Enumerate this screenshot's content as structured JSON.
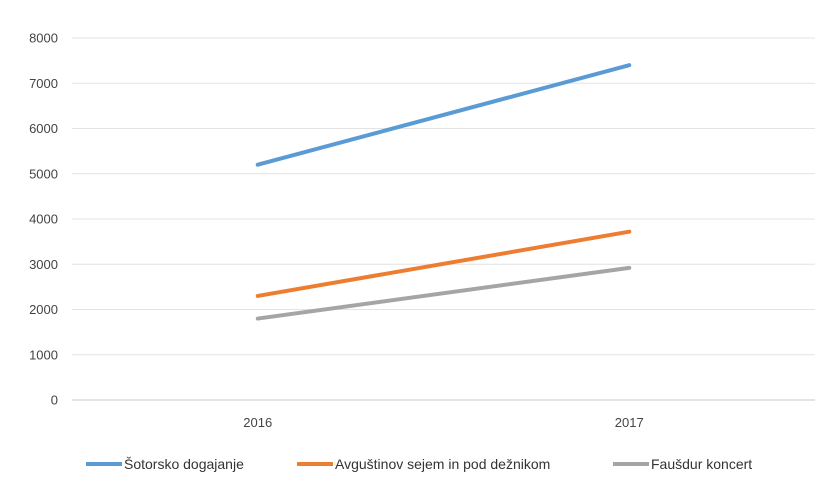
{
  "chart_data": {
    "type": "line",
    "title": "",
    "xlabel": "",
    "ylabel": "",
    "categories": [
      "2016",
      "2017"
    ],
    "ylim": [
      0,
      8000
    ],
    "yticks": [
      0,
      1000,
      2000,
      3000,
      4000,
      5000,
      6000,
      7000,
      8000
    ],
    "grid": "horizontal",
    "legend_position": "bottom",
    "series": [
      {
        "name": "Šotorsko dogajanje",
        "values": [
          5200,
          7400
        ],
        "color": "#5b9bd5"
      },
      {
        "name": "Avguštinov sejem in pod dežnikom",
        "values": [
          2300,
          3720
        ],
        "color": "#ed7d31"
      },
      {
        "name": "Faušdur koncert",
        "values": [
          1800,
          2920
        ],
        "color": "#a5a5a5"
      }
    ]
  }
}
